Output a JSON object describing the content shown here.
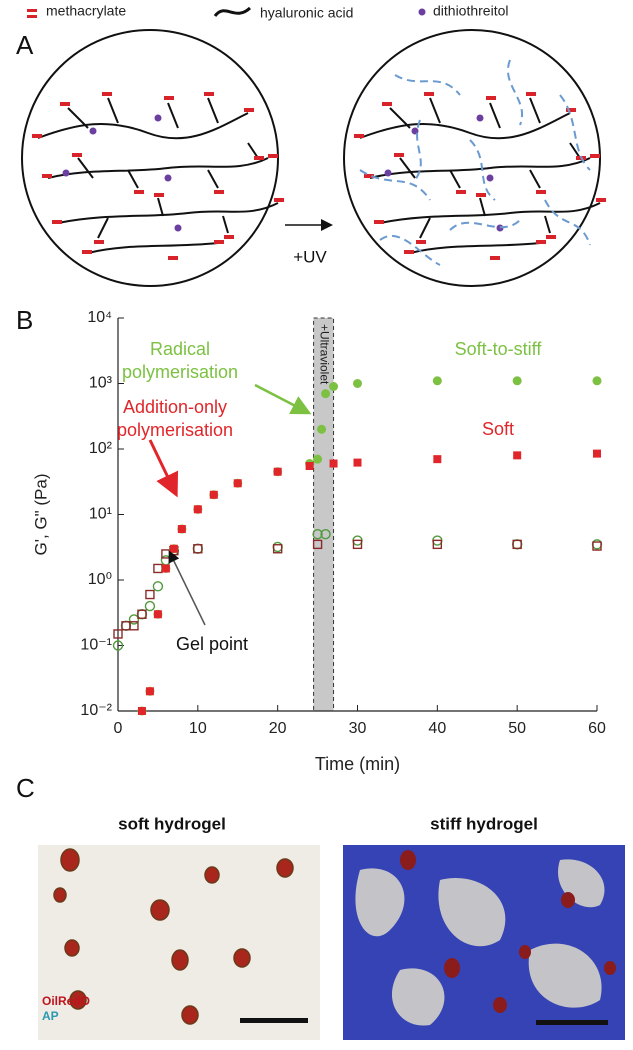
{
  "legend": {
    "methacrylate": "methacrylate",
    "hyaluronic_acid": "hyaluronic acid",
    "dithiothreitol": "dithiothreitol"
  },
  "panel_a": {
    "label": "A",
    "arrow_label": "+UV"
  },
  "panel_b": {
    "label": "B"
  },
  "panel_c": {
    "label": "C",
    "left_title": "soft hydrogel",
    "right_title": "stiff hydrogel",
    "stain_1": "OilRedO",
    "stain_2": "AP"
  },
  "chart_data": {
    "type": "scatter",
    "xlabel": "Time (min)",
    "ylabel": "G', G\" (Pa)",
    "xlim": [
      0,
      60
    ],
    "xticks": [
      0,
      10,
      20,
      30,
      40,
      50,
      60
    ],
    "ylim": [
      0.01,
      10000
    ],
    "log_y": true,
    "yticks": [
      {
        "value": 0.01,
        "label": "10⁻²"
      },
      {
        "value": 0.1,
        "label": "10⁻¹"
      },
      {
        "value": 1,
        "label": "10⁰"
      },
      {
        "value": 10,
        "label": "10¹"
      },
      {
        "value": 100,
        "label": "10²"
      },
      {
        "value": 1000,
        "label": "10³"
      },
      {
        "value": 10000,
        "label": "10⁴"
      }
    ],
    "uv_label": "+Ultraviolet",
    "uv_band": [
      24.5,
      27
    ],
    "series": [
      {
        "name": "Soft-to-stiff",
        "color": "#7cc142",
        "marker": "circle",
        "filled": true,
        "x": [
          3,
          4,
          5,
          6,
          7,
          8,
          10,
          12,
          15,
          20,
          24,
          25,
          25.5,
          26,
          27,
          30,
          40,
          50,
          60
        ],
        "values": [
          0.01,
          0.02,
          0.3,
          1.5,
          3,
          6,
          12,
          20,
          30,
          45,
          60,
          70,
          200,
          700,
          900,
          1000,
          1100,
          1100,
          1100
        ]
      },
      {
        "name": "Soft",
        "color": "#e0262a",
        "marker": "square",
        "filled": true,
        "x": [
          3,
          4,
          5,
          6,
          7,
          8,
          10,
          12,
          15,
          20,
          24,
          27,
          30,
          40,
          50,
          60
        ],
        "values": [
          0.01,
          0.02,
          0.3,
          1.5,
          3,
          6,
          12,
          20,
          30,
          45,
          55,
          60,
          62,
          70,
          80,
          85
        ]
      },
      {
        "color": "#4e9a3c",
        "marker": "circle",
        "filled": false,
        "x": [
          0,
          1,
          2,
          3,
          4,
          5,
          6,
          7,
          10,
          20,
          25,
          26,
          30,
          40,
          50,
          60
        ],
        "values": [
          0.1,
          0.2,
          0.25,
          0.3,
          0.4,
          0.8,
          2,
          2.8,
          3,
          3.2,
          5,
          5,
          4,
          4,
          3.5,
          3.5
        ]
      },
      {
        "color": "#8b2a2a",
        "marker": "square",
        "filled": false,
        "x": [
          0,
          1,
          2,
          3,
          4,
          5,
          6,
          7,
          10,
          20,
          25,
          30,
          40,
          50,
          60
        ],
        "values": [
          0.15,
          0.2,
          0.2,
          0.3,
          0.6,
          1.5,
          2.5,
          2.8,
          3,
          3,
          3.5,
          3.5,
          3.5,
          3.5,
          3.3
        ]
      }
    ],
    "annotations": {
      "radical": [
        "Radical",
        "polymerisation"
      ],
      "addition": [
        "Addition-only",
        "polymerisation"
      ],
      "gel_point": "Gel point"
    }
  }
}
